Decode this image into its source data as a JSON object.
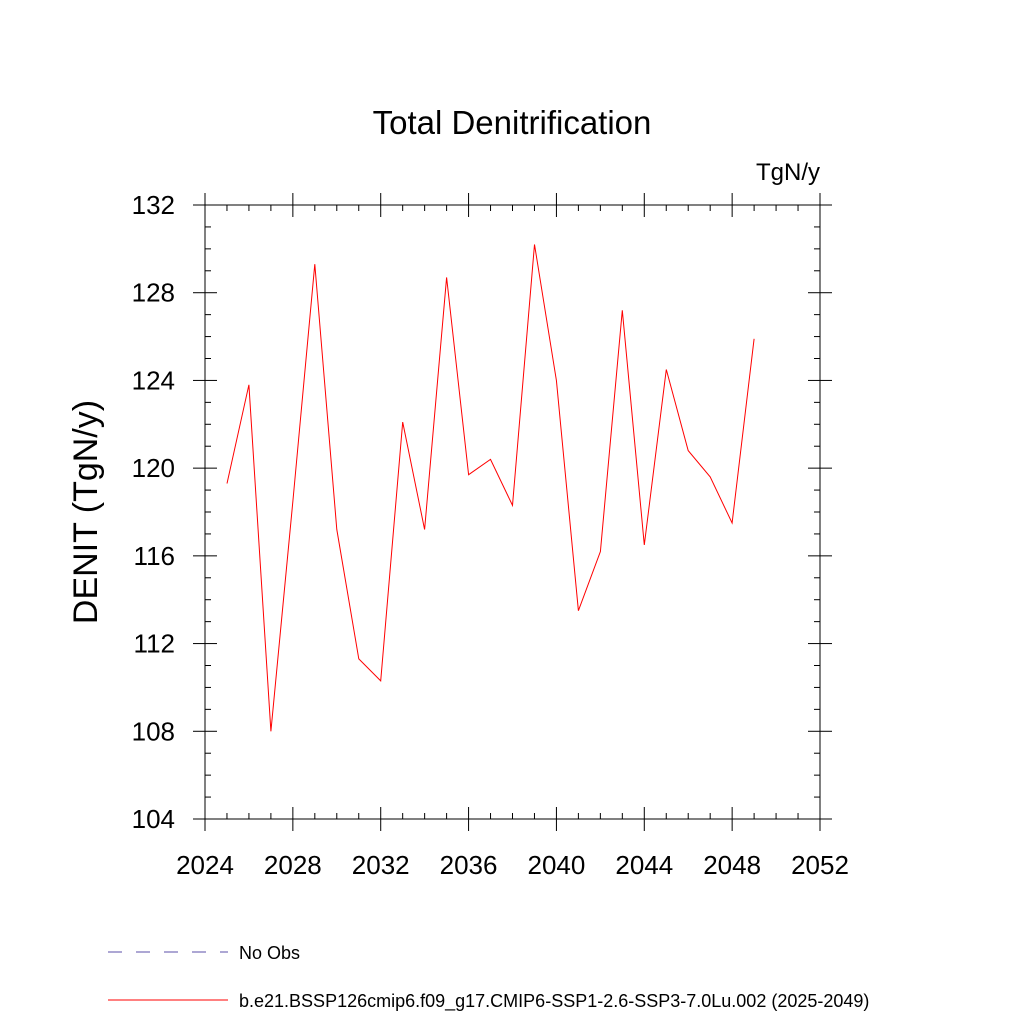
{
  "chart_data": {
    "type": "line",
    "title": "Total Denitrification",
    "units_label": "TgN/y",
    "ylabel": "DENIT  (TgN/y)",
    "xlabel": "",
    "xlim": [
      2024,
      2052
    ],
    "ylim": [
      104,
      132
    ],
    "x_ticks": [
      "2024",
      "2028",
      "2032",
      "2036",
      "2040",
      "2044",
      "2048",
      "2052"
    ],
    "y_ticks": [
      "104",
      "108",
      "112",
      "116",
      "120",
      "124",
      "128",
      "132"
    ],
    "grid": false,
    "legend_placement": "bottom",
    "series": [
      {
        "name": "b.e21.BSSP126cmip6.f09_g17.CMIP6-SSP1-2.6-SSP3-7.0Lu.002 (2025-2049)",
        "color": "#ff0000",
        "style": "solid",
        "x": [
          2025,
          2026,
          2027,
          2028,
          2029,
          2030,
          2031,
          2032,
          2033,
          2034,
          2035,
          2036,
          2037,
          2038,
          2039,
          2040,
          2041,
          2042,
          2043,
          2044,
          2045,
          2046,
          2047,
          2048,
          2049
        ],
        "y": [
          119.3,
          123.8,
          108.0,
          118.5,
          129.3,
          117.2,
          111.3,
          110.3,
          122.1,
          117.2,
          128.7,
          119.7,
          120.4,
          118.3,
          130.2,
          124.0,
          113.5,
          116.2,
          127.2,
          116.5,
          124.5,
          120.8,
          119.6,
          117.5,
          125.9
        ]
      },
      {
        "name": "No Obs",
        "color": "#5b4fa8",
        "style": "dashed",
        "x": [],
        "y": []
      }
    ]
  }
}
